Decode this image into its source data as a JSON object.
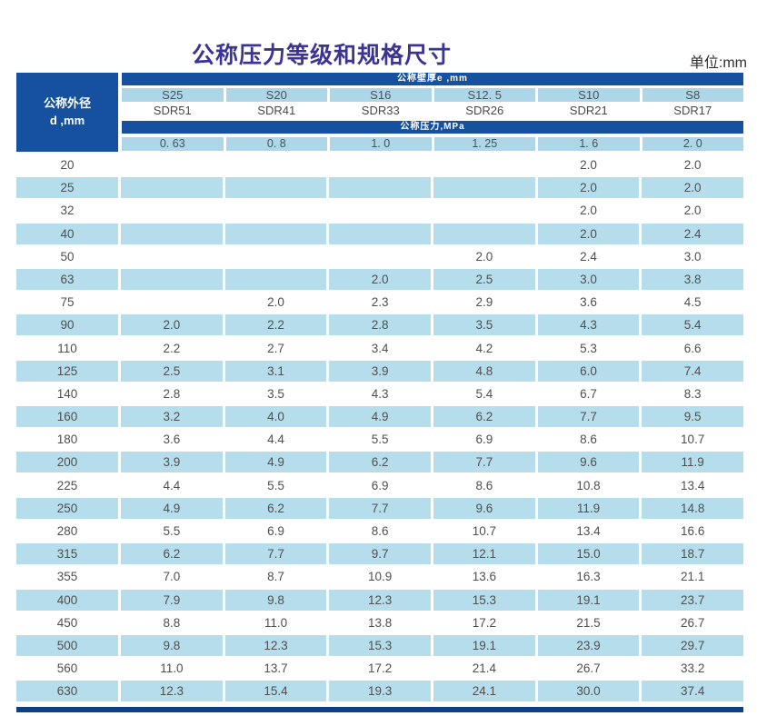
{
  "page": {
    "title": "公称压力等级和规格尺寸",
    "unit_label": "单位:mm"
  },
  "colors": {
    "title_text": "#3b3492",
    "header_dark_blue": "#15519e",
    "header_light_blue": "#add7e9",
    "row_light_blue": "#b6ddec",
    "bottom_rule": "#0d4084",
    "cell_text": "#4f4f4f"
  },
  "table": {
    "corner_line1": "公称外径",
    "corner_line2": "d ,mm",
    "wall_thickness_band": "公称壁厚e ,mm",
    "pressure_band": "公称压力,MPa",
    "s_labels": [
      "S25",
      "S20",
      "S16",
      "S12. 5",
      "S10",
      "S8"
    ],
    "sdr_labels": [
      "SDR51",
      "SDR41",
      "SDR33",
      "SDR26",
      "SDR21",
      "SDR17"
    ],
    "pressure_values": [
      "0. 63",
      "0. 8",
      "1. 0",
      "1. 25",
      "1. 6",
      "2. 0"
    ],
    "rows": [
      {
        "d": "20",
        "values": [
          "",
          "",
          "",
          "",
          "2.0",
          "2.0"
        ]
      },
      {
        "d": "25",
        "values": [
          "",
          "",
          "",
          "",
          "2.0",
          "2.0"
        ]
      },
      {
        "d": "32",
        "values": [
          "",
          "",
          "",
          "",
          "2.0",
          "2.0"
        ]
      },
      {
        "d": "40",
        "values": [
          "",
          "",
          "",
          "",
          "2.0",
          "2.4"
        ]
      },
      {
        "d": "50",
        "values": [
          "",
          "",
          "",
          "2.0",
          "2.4",
          "3.0"
        ]
      },
      {
        "d": "63",
        "values": [
          "",
          "",
          "2.0",
          "2.5",
          "3.0",
          "3.8"
        ]
      },
      {
        "d": "75",
        "values": [
          "",
          "2.0",
          "2.3",
          "2.9",
          "3.6",
          "4.5"
        ]
      },
      {
        "d": "90",
        "values": [
          "2.0",
          "2.2",
          "2.8",
          "3.5",
          "4.3",
          "5.4"
        ]
      },
      {
        "d": "110",
        "values": [
          "2.2",
          "2.7",
          "3.4",
          "4.2",
          "5.3",
          "6.6"
        ]
      },
      {
        "d": "125",
        "values": [
          "2.5",
          "3.1",
          "3.9",
          "4.8",
          "6.0",
          "7.4"
        ]
      },
      {
        "d": "140",
        "values": [
          "2.8",
          "3.5",
          "4.3",
          "5.4",
          "6.7",
          "8.3"
        ]
      },
      {
        "d": "160",
        "values": [
          "3.2",
          "4.0",
          "4.9",
          "6.2",
          "7.7",
          "9.5"
        ]
      },
      {
        "d": "180",
        "values": [
          "3.6",
          "4.4",
          "5.5",
          "6.9",
          "8.6",
          "10.7"
        ]
      },
      {
        "d": "200",
        "values": [
          "3.9",
          "4.9",
          "6.2",
          "7.7",
          "9.6",
          "11.9"
        ]
      },
      {
        "d": "225",
        "values": [
          "4.4",
          "5.5",
          "6.9",
          "8.6",
          "10.8",
          "13.4"
        ]
      },
      {
        "d": "250",
        "values": [
          "4.9",
          "6.2",
          "7.7",
          "9.6",
          "11.9",
          "14.8"
        ]
      },
      {
        "d": "280",
        "values": [
          "5.5",
          "6.9",
          "8.6",
          "10.7",
          "13.4",
          "16.6"
        ]
      },
      {
        "d": "315",
        "values": [
          "6.2",
          "7.7",
          "9.7",
          "12.1",
          "15.0",
          "18.7"
        ]
      },
      {
        "d": "355",
        "values": [
          "7.0",
          "8.7",
          "10.9",
          "13.6",
          "16.3",
          "21.1"
        ]
      },
      {
        "d": "400",
        "values": [
          "7.9",
          "9.8",
          "12.3",
          "15.3",
          "19.1",
          "23.7"
        ]
      },
      {
        "d": "450",
        "values": [
          "8.8",
          "11.0",
          "13.8",
          "17.2",
          "21.5",
          "26.7"
        ]
      },
      {
        "d": "500",
        "values": [
          "9.8",
          "12.3",
          "15.3",
          "19.1",
          "23.9",
          "29.7"
        ]
      },
      {
        "d": "560",
        "values": [
          "11.0",
          "13.7",
          "17.2",
          "21.4",
          "26.7",
          "33.2"
        ]
      },
      {
        "d": "630",
        "values": [
          "12.3",
          "15.4",
          "19.3",
          "24.1",
          "30.0",
          "37.4"
        ]
      }
    ]
  }
}
